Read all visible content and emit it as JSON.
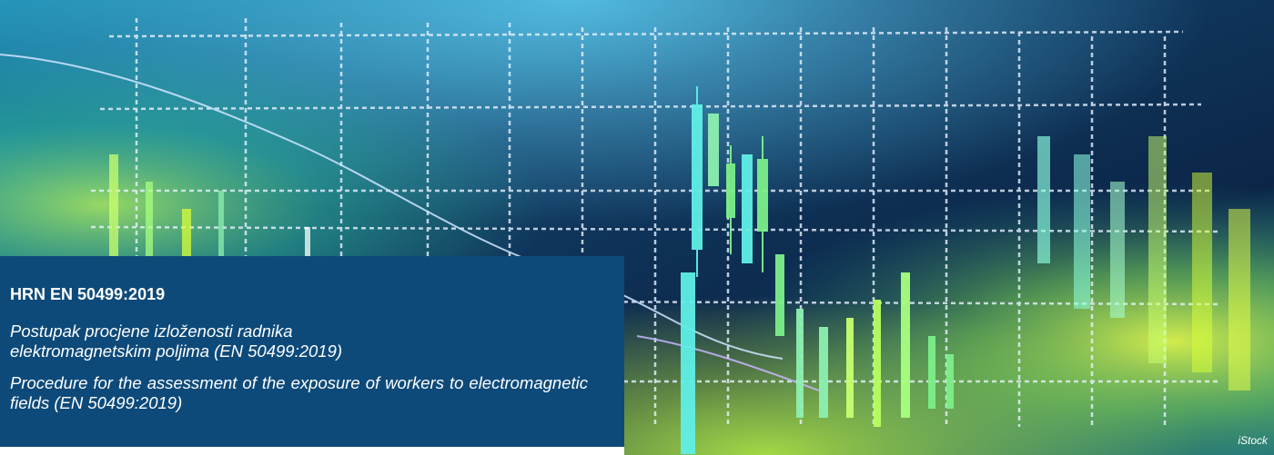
{
  "banner": {
    "standard_code": "HRN EN 50499:2019",
    "title_hr": "Postupak procjene izloženosti radnika elektromagnetskim poljima (EN 50499:2019)",
    "title_en": "Procedure for the assessment of the exposure of workers to electromagnetic fields (EN 50499:2019)",
    "photo_credit": "iStock"
  },
  "colors": {
    "panel_background": "#0d4a7a",
    "background_dark": "#0c1f3a",
    "grid_line": "#e8f2ff",
    "candle_cyan": "#5ff0e6",
    "candle_green": "#7cf08a",
    "glow_yellow": "#d8ff3a"
  }
}
